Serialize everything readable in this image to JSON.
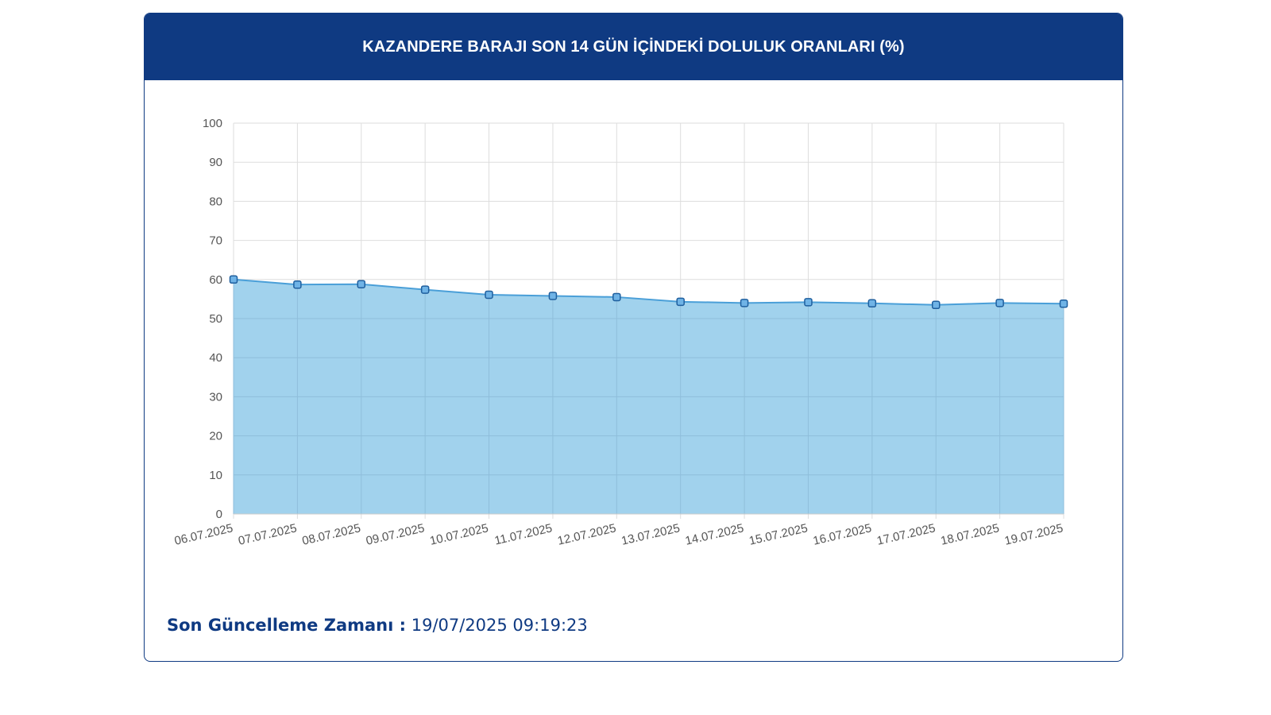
{
  "header": {
    "title": "KAZANDERE BARAJI SON 14 GÜN İÇİNDEKİ DOLULUK ORANLARI (%)"
  },
  "footer": {
    "label": "Son Güncelleme Zamanı :",
    "value": "19/07/2025 09:19:23"
  },
  "colors": {
    "header_bg": "#0f3a82",
    "area_fill": "#9cd0ec",
    "line": "#4a9fd8",
    "point": "#2e86c9",
    "grid": "#dddddd"
  },
  "chart_data": {
    "type": "area",
    "title": "KAZANDERE BARAJI SON 14 GÜN İÇİNDEKİ DOLULUK ORANLARI (%)",
    "xlabel": "",
    "ylabel": "",
    "ylim": [
      0,
      100
    ],
    "yticks": [
      0,
      10,
      20,
      30,
      40,
      50,
      60,
      70,
      80,
      90,
      100
    ],
    "grid": true,
    "categories": [
      "06.07.2025",
      "07.07.2025",
      "08.07.2025",
      "09.07.2025",
      "10.07.2025",
      "11.07.2025",
      "12.07.2025",
      "13.07.2025",
      "14.07.2025",
      "15.07.2025",
      "16.07.2025",
      "17.07.2025",
      "18.07.2025",
      "19.07.2025"
    ],
    "values": [
      60.0,
      58.7,
      58.8,
      57.4,
      56.1,
      55.8,
      55.5,
      54.3,
      54.0,
      54.2,
      53.9,
      53.5,
      54.0,
      53.8
    ]
  }
}
